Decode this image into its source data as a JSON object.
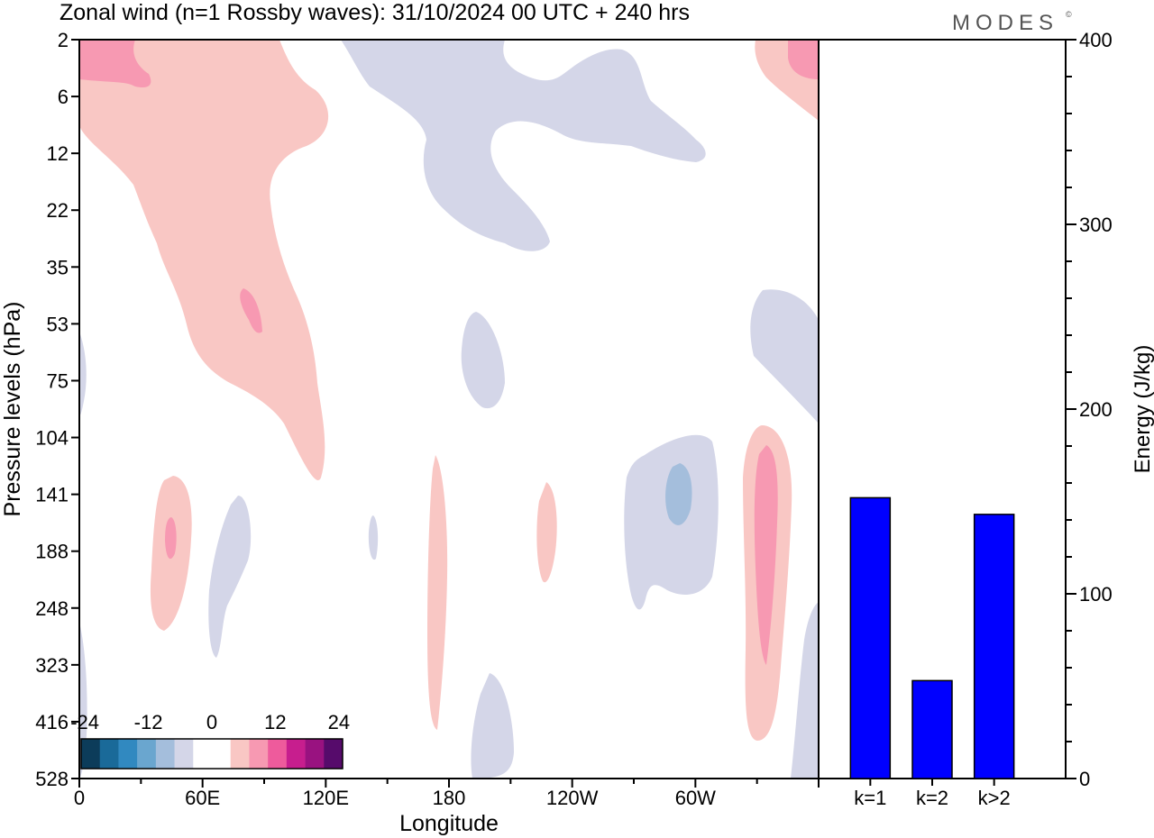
{
  "title": "Zonal wind (n=1 Rossby waves):  31/10/2024  00 UTC  + 240 hrs",
  "logo": "MODES",
  "logo_mark": "©",
  "chart_data": [
    {
      "type": "heatmap",
      "xlabel": "Longitude",
      "ylabel": "Pressure levels (hPa)",
      "x_ticks": [
        "0",
        "60E",
        "120E",
        "180",
        "120W",
        "60W"
      ],
      "y_ticks": [
        "2",
        "6",
        "12",
        "22",
        "35",
        "53",
        "75",
        "104",
        "141",
        "188",
        "248",
        "323",
        "416",
        "528"
      ],
      "colorbar": {
        "labels": [
          "-24",
          "-12",
          "0",
          "12",
          "24"
        ],
        "colors": [
          "#0c3c5a",
          "#1a6a99",
          "#3189c0",
          "#6aa6cf",
          "#a4bedc",
          "#d4d6e8",
          "#ffffff",
          "#ffffff",
          "#f9c7c4",
          "#f799b2",
          "#ee5b9c",
          "#c71e8e",
          "#991280",
          "#560b6b"
        ]
      },
      "series_colors": {
        "negative_weak": "#d4d6e8",
        "negative_moderate": "#a4bedc",
        "positive_weak": "#f9c7c4",
        "positive_moderate": "#f799b2"
      }
    },
    {
      "type": "bar",
      "categories": [
        "k=1",
        "k=2",
        "k>2"
      ],
      "values": [
        152,
        53,
        143
      ],
      "ylabel": "Energy (J/kg)",
      "ylim": [
        0,
        400
      ],
      "y_ticks": [
        "0",
        "100",
        "200",
        "300",
        "400"
      ],
      "bar_color": "#0000ff"
    }
  ]
}
